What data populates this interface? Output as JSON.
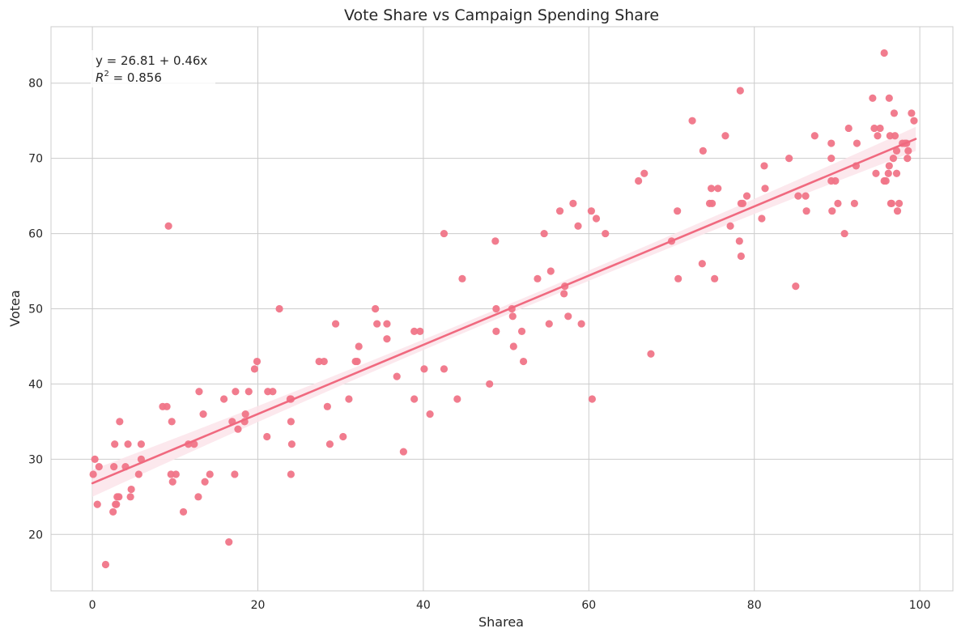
{
  "chart_data": {
    "type": "scatter",
    "title": "Vote Share vs Campaign Spending Share",
    "xlabel": "Sharea",
    "ylabel": "Votea",
    "xlim": [
      -5,
      104
    ],
    "ylim": [
      12.5,
      87.5
    ],
    "xticks": [
      0,
      20,
      40,
      60,
      80,
      100
    ],
    "yticks": [
      20,
      30,
      40,
      50,
      60,
      70,
      80
    ],
    "grid": true,
    "colors": {
      "points": "#f07588",
      "line": "#f0697f",
      "band": "#fce4ea",
      "grid": "#cccccc",
      "frame": "#cccccc",
      "text": "#262626"
    },
    "annotation": {
      "equation": "y = 26.81 + 0.46x",
      "r2_label": "R",
      "r2_sup": "2",
      "r2_value": " = 0.856",
      "anchor": "top-left"
    },
    "regression": {
      "intercept": 26.81,
      "slope": 0.46,
      "x_range": [
        0,
        99.5
      ]
    },
    "ci_band_halfwidth": {
      "x0": 1.8,
      "xmid": 0.65,
      "x1": 1.6
    },
    "points": [
      [
        0.1,
        28
      ],
      [
        0.3,
        30
      ],
      [
        0.6,
        24
      ],
      [
        0.8,
        29
      ],
      [
        1.6,
        16
      ],
      [
        2.5,
        23
      ],
      [
        2.6,
        29
      ],
      [
        2.7,
        32
      ],
      [
        2.8,
        24
      ],
      [
        2.9,
        24
      ],
      [
        3.0,
        25
      ],
      [
        3.2,
        25
      ],
      [
        3.3,
        35
      ],
      [
        4.0,
        29
      ],
      [
        4.3,
        32
      ],
      [
        4.6,
        25
      ],
      [
        4.7,
        26
      ],
      [
        5.6,
        28
      ],
      [
        5.9,
        32
      ],
      [
        5.9,
        30
      ],
      [
        8.5,
        37
      ],
      [
        9.0,
        37
      ],
      [
        9.2,
        61
      ],
      [
        9.5,
        28
      ],
      [
        9.6,
        35
      ],
      [
        9.7,
        27
      ],
      [
        10.1,
        28
      ],
      [
        11.0,
        23
      ],
      [
        11.6,
        32
      ],
      [
        12.3,
        32
      ],
      [
        12.8,
        25
      ],
      [
        12.9,
        39
      ],
      [
        13.4,
        36
      ],
      [
        13.6,
        27
      ],
      [
        14.2,
        28
      ],
      [
        15.9,
        38
      ],
      [
        16.5,
        19
      ],
      [
        16.9,
        35
      ],
      [
        17.2,
        28
      ],
      [
        17.3,
        39
      ],
      [
        17.6,
        34
      ],
      [
        18.4,
        35
      ],
      [
        18.5,
        36
      ],
      [
        18.9,
        39
      ],
      [
        19.6,
        42
      ],
      [
        19.9,
        43
      ],
      [
        21.1,
        33
      ],
      [
        21.2,
        39
      ],
      [
        21.8,
        39
      ],
      [
        22.6,
        50
      ],
      [
        23.9,
        38
      ],
      [
        24.0,
        28
      ],
      [
        24.0,
        35
      ],
      [
        24.0,
        38
      ],
      [
        24.1,
        32
      ],
      [
        27.4,
        43
      ],
      [
        28.0,
        43
      ],
      [
        28.4,
        37
      ],
      [
        28.7,
        32
      ],
      [
        29.4,
        48
      ],
      [
        30.3,
        33
      ],
      [
        31.0,
        38
      ],
      [
        31.8,
        43
      ],
      [
        32.0,
        43
      ],
      [
        32.2,
        45
      ],
      [
        34.2,
        50
      ],
      [
        34.4,
        48
      ],
      [
        35.6,
        48
      ],
      [
        35.6,
        46
      ],
      [
        36.8,
        41
      ],
      [
        37.6,
        31
      ],
      [
        38.9,
        38
      ],
      [
        38.9,
        47
      ],
      [
        39.6,
        47
      ],
      [
        40.1,
        42
      ],
      [
        40.8,
        36
      ],
      [
        42.5,
        42
      ],
      [
        42.5,
        60
      ],
      [
        44.1,
        38
      ],
      [
        44.7,
        54
      ],
      [
        48.0,
        40
      ],
      [
        48.7,
        59
      ],
      [
        48.8,
        50
      ],
      [
        48.8,
        47
      ],
      [
        50.7,
        50
      ],
      [
        50.8,
        49
      ],
      [
        50.9,
        45
      ],
      [
        51.9,
        47
      ],
      [
        52.1,
        43
      ],
      [
        53.8,
        54
      ],
      [
        54.6,
        60
      ],
      [
        55.2,
        48
      ],
      [
        55.4,
        55
      ],
      [
        56.5,
        63
      ],
      [
        57.0,
        52
      ],
      [
        57.1,
        53
      ],
      [
        57.5,
        49
      ],
      [
        58.1,
        64
      ],
      [
        58.7,
        61
      ],
      [
        59.1,
        48
      ],
      [
        60.3,
        63
      ],
      [
        60.4,
        38
      ],
      [
        60.9,
        62
      ],
      [
        62.0,
        60
      ],
      [
        66.0,
        67
      ],
      [
        66.7,
        68
      ],
      [
        67.5,
        44
      ],
      [
        70.0,
        59
      ],
      [
        70.7,
        63
      ],
      [
        70.8,
        54
      ],
      [
        72.5,
        75
      ],
      [
        73.7,
        56
      ],
      [
        73.8,
        71
      ],
      [
        74.6,
        64
      ],
      [
        74.8,
        66
      ],
      [
        74.9,
        64
      ],
      [
        75.2,
        54
      ],
      [
        75.6,
        66
      ],
      [
        76.5,
        73
      ],
      [
        77.1,
        61
      ],
      [
        78.2,
        59
      ],
      [
        78.3,
        79
      ],
      [
        78.4,
        57
      ],
      [
        78.4,
        64
      ],
      [
        78.6,
        64
      ],
      [
        79.1,
        65
      ],
      [
        80.9,
        62
      ],
      [
        81.2,
        69
      ],
      [
        81.3,
        66
      ],
      [
        84.2,
        70
      ],
      [
        85.0,
        53
      ],
      [
        85.3,
        65
      ],
      [
        86.2,
        65
      ],
      [
        86.3,
        63
      ],
      [
        87.3,
        73
      ],
      [
        89.3,
        72
      ],
      [
        89.3,
        70
      ],
      [
        89.3,
        67
      ],
      [
        89.4,
        63
      ],
      [
        89.8,
        67
      ],
      [
        90.1,
        64
      ],
      [
        90.9,
        60
      ],
      [
        91.4,
        74
      ],
      [
        92.1,
        64
      ],
      [
        92.3,
        69
      ],
      [
        92.4,
        72
      ],
      [
        94.3,
        78
      ],
      [
        94.5,
        74
      ],
      [
        94.7,
        68
      ],
      [
        94.9,
        73
      ],
      [
        95.2,
        74
      ],
      [
        95.7,
        84
      ],
      [
        95.7,
        67
      ],
      [
        95.9,
        67
      ],
      [
        96.2,
        68
      ],
      [
        96.3,
        78
      ],
      [
        96.3,
        69
      ],
      [
        96.4,
        73
      ],
      [
        96.5,
        64
      ],
      [
        96.6,
        64
      ],
      [
        96.8,
        70
      ],
      [
        96.9,
        76
      ],
      [
        97.0,
        73
      ],
      [
        97.2,
        71
      ],
      [
        97.2,
        68
      ],
      [
        97.3,
        63
      ],
      [
        97.5,
        64
      ],
      [
        97.9,
        72
      ],
      [
        98.2,
        72
      ],
      [
        98.4,
        72
      ],
      [
        98.5,
        70
      ],
      [
        98.6,
        71
      ],
      [
        99.0,
        76
      ],
      [
        99.3,
        75
      ]
    ]
  }
}
